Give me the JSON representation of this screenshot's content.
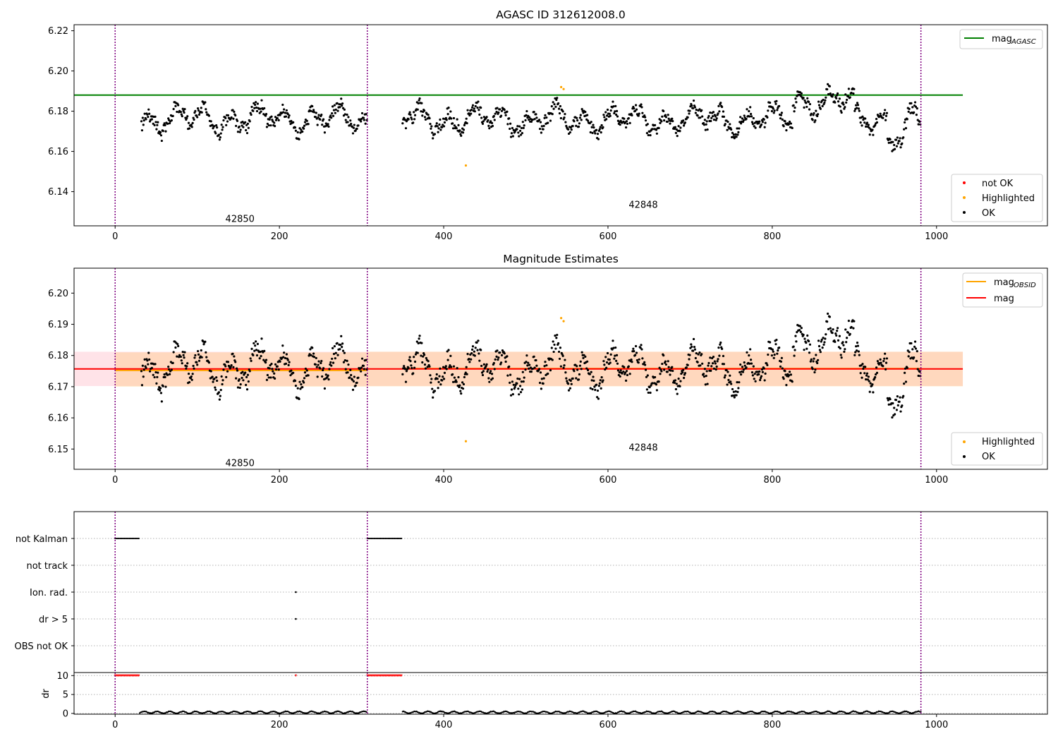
{
  "chart_data": [
    {
      "type": "scatter",
      "title": "AGASC ID 312612008.0",
      "xlim": [
        -50,
        1135
      ],
      "ylim": [
        6.123,
        6.223
      ],
      "xticks": [
        0,
        200,
        400,
        600,
        800,
        1000
      ],
      "yticks": [
        6.14,
        6.16,
        6.18,
        6.2,
        6.22
      ],
      "ytick_labels": [
        "6.14",
        "6.16",
        "6.18",
        "6.20",
        "6.22"
      ],
      "obsid_boundaries": [
        0,
        307,
        981
      ],
      "obsid_labels": [
        {
          "text": "42850",
          "x": 152,
          "y": 6.125
        },
        {
          "text": "42848",
          "x": 643,
          "y": 6.132
        }
      ],
      "reference_line": {
        "name": "mag_AGASC",
        "value": 6.188,
        "x": [
          -50,
          1032
        ],
        "color": "#008000"
      },
      "points": {
        "ok": {
          "x_ranges": [
            [
              32,
              307
            ],
            [
              350,
              981
            ]
          ],
          "center": 6.176,
          "amplitude": 0.007
        },
        "highlighted": [
          [
            543,
            6.192
          ],
          [
            546,
            6.191
          ],
          [
            427,
            6.153
          ]
        ],
        "not_ok": []
      },
      "legend": {
        "upper": [
          {
            "label": "mag",
            "sub": "AGASC",
            "color": "#008000",
            "kind": "line"
          }
        ],
        "lower": [
          {
            "label": "not OK",
            "color": "#ff0000",
            "kind": "marker"
          },
          {
            "label": "Highlighted",
            "color": "#ffa500",
            "kind": "marker"
          },
          {
            "label": "OK",
            "color": "#000000",
            "kind": "marker"
          }
        ],
        "placement": [
          "upper right",
          "lower right"
        ]
      }
    },
    {
      "type": "scatter",
      "title": "Magnitude Estimates",
      "xlim": [
        -50,
        1135
      ],
      "ylim": [
        6.1435,
        6.208
      ],
      "xticks": [
        0,
        200,
        400,
        600,
        800,
        1000
      ],
      "yticks": [
        6.15,
        6.16,
        6.17,
        6.18,
        6.19,
        6.2
      ],
      "ytick_labels": [
        "6.15",
        "6.16",
        "6.17",
        "6.18",
        "6.19",
        "6.20"
      ],
      "obsid_boundaries": [
        0,
        307,
        981
      ],
      "obsid_labels": [
        {
          "text": "42850",
          "x": 152,
          "y": 6.1445
        },
        {
          "text": "42848",
          "x": 643,
          "y": 6.1495
        }
      ],
      "mag_line": {
        "name": "mag",
        "value": 6.1757,
        "x": [
          -50,
          1032
        ],
        "color": "#ff0000"
      },
      "mag_band": {
        "low": 6.1702,
        "high": 6.1812,
        "x": [
          -50,
          1032
        ],
        "color": "#ffc0cb"
      },
      "obsid_lines": [
        {
          "name": "mag_OBSID",
          "value": 6.1752,
          "x": [
            0,
            307
          ],
          "color": "#ffa500"
        },
        {
          "name": "mag_OBSID",
          "value": 6.1758,
          "x": [
            350,
            981
          ],
          "color": "#ffa500"
        }
      ],
      "obsid_bands": [
        {
          "low": 6.17,
          "high": 6.181,
          "x": [
            0,
            307
          ]
        },
        {
          "low": 6.1701,
          "high": 6.1812,
          "x": [
            307,
            1032
          ]
        }
      ],
      "points": {
        "ok": {
          "x_ranges": [
            [
              32,
              307
            ],
            [
              350,
              981
            ]
          ],
          "center": 6.176,
          "amplitude": 0.007
        },
        "highlighted": [
          [
            543,
            6.192
          ],
          [
            546,
            6.191
          ],
          [
            427,
            6.1525
          ]
        ]
      },
      "legend": {
        "upper": [
          {
            "label": "mag",
            "sub": "OBSID",
            "color": "#ffa500",
            "kind": "line"
          },
          {
            "label": "mag",
            "sub": "",
            "color": "#ff0000",
            "kind": "line"
          }
        ],
        "lower": [
          {
            "label": "Highlighted",
            "color": "#ffa500",
            "kind": "marker"
          },
          {
            "label": "OK",
            "color": "#000000",
            "kind": "marker"
          }
        ],
        "placement": [
          "upper right",
          "lower right"
        ]
      }
    },
    {
      "type": "scatter",
      "title": "",
      "xlim": [
        -50,
        1135
      ],
      "xticks": [
        0,
        200,
        400,
        600,
        800,
        1000
      ],
      "obsid_boundaries": [
        0,
        307,
        981
      ],
      "flags": {
        "categories": [
          "not Kalman",
          "not track",
          "Ion. rad.",
          "dr > 5",
          "OBS not OK"
        ],
        "points": {
          "not Kalman": [
            [
              0,
              30
            ],
            [
              307,
              350
            ]
          ],
          "not track": [],
          "Ion. rad.": [
            220
          ],
          "dr > 5": [
            220
          ],
          "OBS not OK": []
        }
      },
      "dr": {
        "ylabel": "dr",
        "ylim": [
          -0.2,
          10.8
        ],
        "yticks": [
          0,
          5,
          10
        ],
        "ytick_labels": [
          "0",
          "5",
          "10"
        ],
        "clipped_value": 10,
        "clipped_ranges": [
          [
            0,
            30
          ],
          [
            307,
            350
          ]
        ],
        "clipped_points": [
          220
        ],
        "baseline_ranges": [
          [
            30,
            307
          ],
          [
            350,
            981
          ]
        ],
        "baseline_value": 0.3
      }
    }
  ]
}
